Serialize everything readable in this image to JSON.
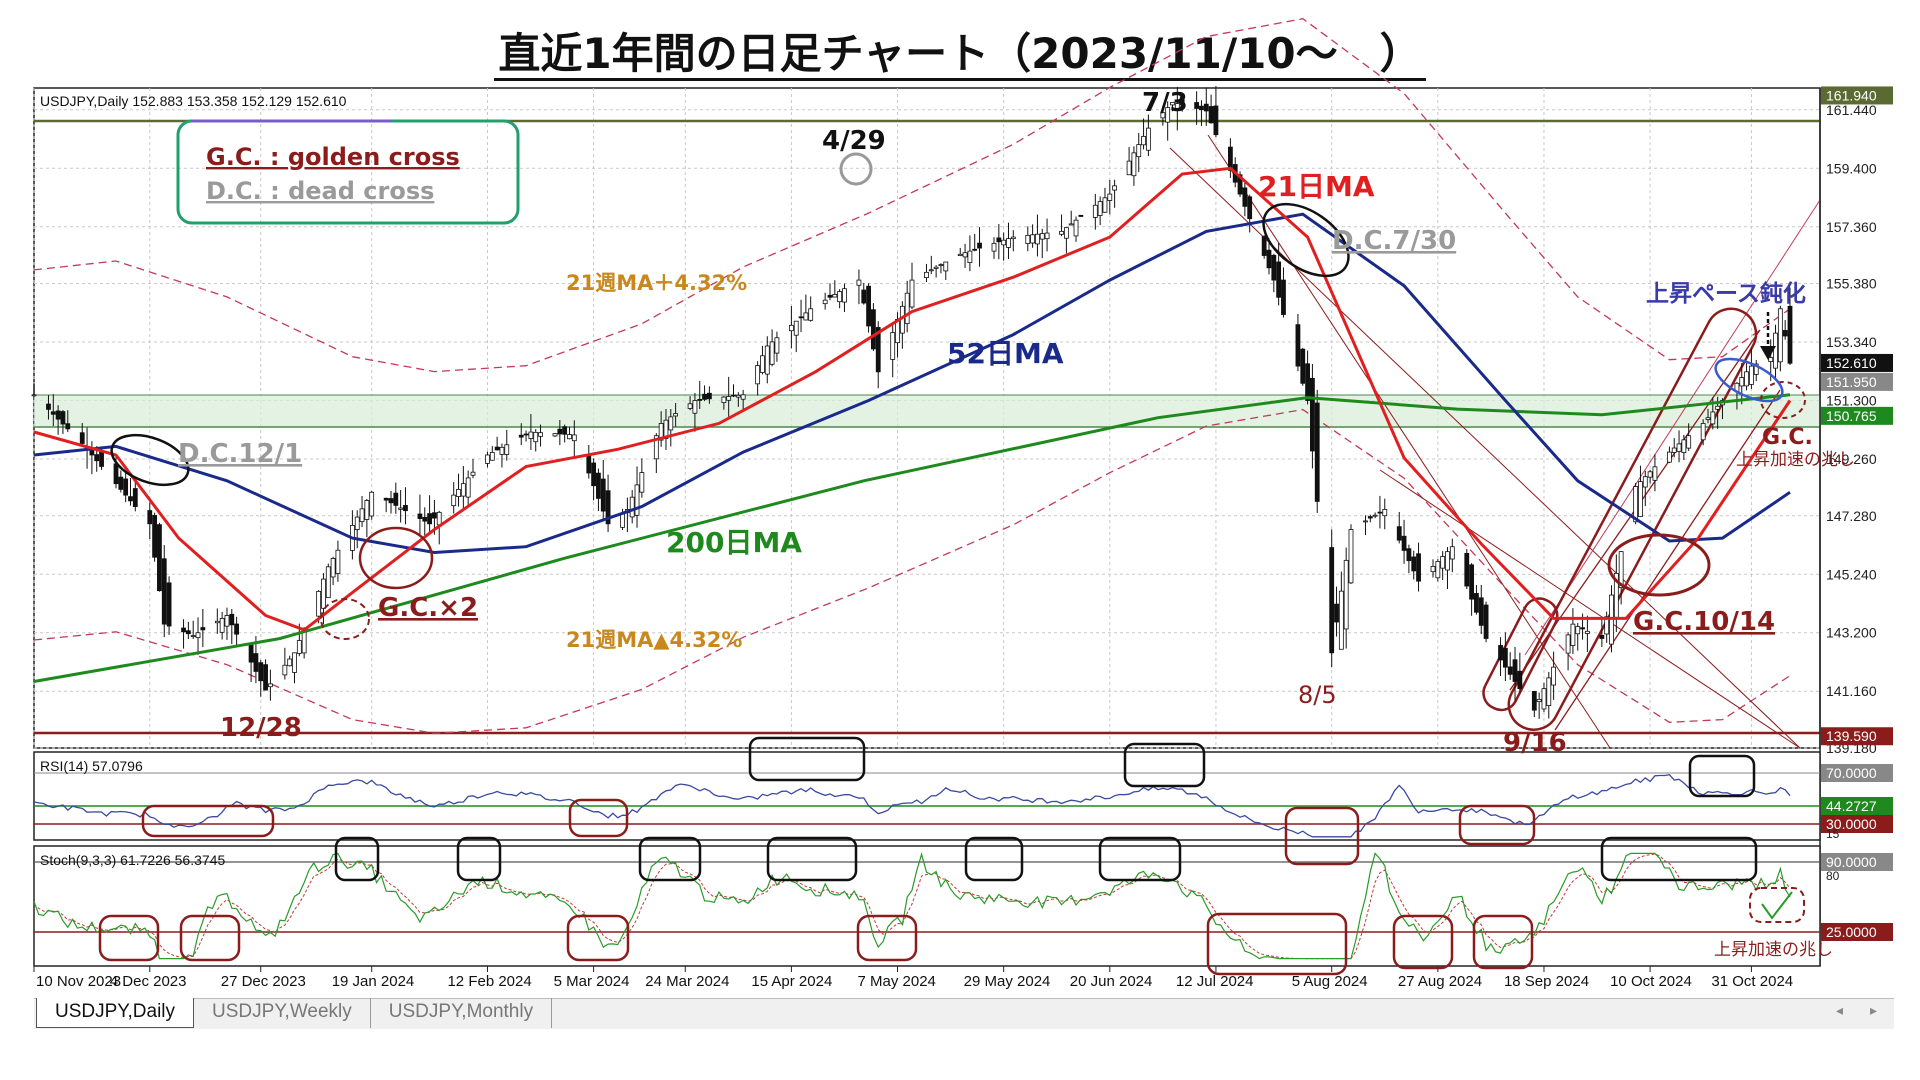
{
  "title": "直近1年間の日足チャート（2023/11/10～　）",
  "main": {
    "symbol_info": "USDJPY,Daily  152.883 153.358 152.129 152.610",
    "legend_gc": "G.C.  : golden cross",
    "legend_dc": "D.C.  :  dead cross",
    "labels": {
      "ma21": "21日MA",
      "ma52": "52日MA",
      "ma200": "200日MA",
      "band_up": "21週MA＋4.32%",
      "band_dn": "21週MA▲4.32%",
      "d_4_29": "4/29",
      "d_7_3": "7/3",
      "d_8_5": "8/5",
      "d_12_28": "12/28",
      "d_9_16": "9/16",
      "dc_12_1": "D.C.12/1",
      "dc_7_30": "D.C.7/30",
      "gc_x2": "G.C.×2",
      "gc_10_14": "G.C.10/14",
      "gc": "G.C.",
      "sign1": "上昇加速の兆し",
      "sign2": "上昇加速の兆し",
      "pace": "上昇ペース鈍化"
    },
    "price_ticks": [
      "161.440",
      "159.400",
      "157.360",
      "155.380",
      "153.340",
      "151.300",
      "149.260",
      "147.280",
      "145.240",
      "143.200",
      "141.160",
      "139.180"
    ],
    "price_tags": {
      "top": "161.940",
      "cur": "152.610",
      "mid": "151.950",
      "low": "150.765",
      "bottom": "139.590"
    },
    "date_labels": [
      "10 Nov 2023",
      "4 Dec 2023",
      "27 Dec 2023",
      "19 Jan 2024",
      "12 Feb 2024",
      "5 Mar 2024",
      "24 Mar 2024",
      "15 Apr 2024",
      "7 May 2024",
      "29 May 2024",
      "20 Jun 2024",
      "12 Jul 2024",
      "5 Aug 2024",
      "27 Aug 2024",
      "18 Sep 2024",
      "10 Oct 2024",
      "31 Oct 2024"
    ]
  },
  "rsi": {
    "label": "RSI(14) 57.0796",
    "tags": [
      "70.0000",
      "44.2727",
      "30.0000"
    ],
    "tick": "15"
  },
  "stoch": {
    "label": "Stoch(9,3,3) 61.7226 56.3745",
    "tags": [
      "90.0000",
      "25.0000"
    ],
    "tick": "80"
  },
  "tabs": [
    "USDJPY,Daily",
    "USDJPY,Weekly",
    "USDJPY,Monthly"
  ],
  "colors": {
    "up_line": "#e02020",
    "ma52": "#1a2a8a",
    "ma200": "#1e8a1e",
    "band": "#c23a5a",
    "annotation": "#8b1c1c",
    "gray_anno": "#8f8f8f",
    "orange": "#c9881e"
  },
  "chart_data": {
    "type": "line",
    "title": "",
    "x_range": [
      "2023-11-10",
      "2024-11-08"
    ],
    "y_range": [
      139.18,
      162.2
    ],
    "series": [
      {
        "name": "USDJPY",
        "points": [
          [
            "2023-11-10",
            151.5
          ],
          [
            "2023-11-20",
            149.8
          ],
          [
            "2023-11-27",
            148.4
          ],
          [
            "2023-12-04",
            147.0
          ],
          [
            "2023-12-07",
            143.5
          ],
          [
            "2023-12-13",
            143.1
          ],
          [
            "2023-12-20",
            143.8
          ],
          [
            "2023-12-28",
            141.2
          ],
          [
            "2024-01-03",
            142.5
          ],
          [
            "2024-01-10",
            145.5
          ],
          [
            "2024-01-19",
            148.1
          ],
          [
            "2024-01-31",
            147.0
          ],
          [
            "2024-02-12",
            149.4
          ],
          [
            "2024-02-21",
            150.2
          ],
          [
            "2024-03-01",
            150.1
          ],
          [
            "2024-03-08",
            147.0
          ],
          [
            "2024-03-12",
            147.5
          ],
          [
            "2024-03-19",
            150.5
          ],
          [
            "2024-03-26",
            151.3
          ],
          [
            "2024-04-05",
            151.5
          ],
          [
            "2024-04-10",
            153.2
          ],
          [
            "2024-04-19",
            154.5
          ],
          [
            "2024-04-29",
            155.5
          ],
          [
            "2024-05-03",
            152.3
          ],
          [
            "2024-05-10",
            155.5
          ],
          [
            "2024-05-20",
            156.4
          ],
          [
            "2024-05-31",
            157.0
          ],
          [
            "2024-06-10",
            157.2
          ],
          [
            "2024-06-20",
            158.5
          ],
          [
            "2024-06-28",
            160.8
          ],
          [
            "2024-07-03",
            161.7
          ],
          [
            "2024-07-10",
            161.4
          ],
          [
            "2024-07-17",
            158.5
          ],
          [
            "2024-07-24",
            155.5
          ],
          [
            "2024-07-31",
            151.3
          ],
          [
            "2024-08-05",
            142.5
          ],
          [
            "2024-08-09",
            146.8
          ],
          [
            "2024-08-16",
            147.5
          ],
          [
            "2024-08-23",
            145.0
          ],
          [
            "2024-08-30",
            146.2
          ],
          [
            "2024-09-06",
            143.0
          ],
          [
            "2024-09-16",
            140.5
          ],
          [
            "2024-09-24",
            143.5
          ],
          [
            "2024-09-30",
            143.0
          ],
          [
            "2024-10-07",
            148.3
          ],
          [
            "2024-10-14",
            149.5
          ],
          [
            "2024-10-21",
            150.5
          ],
          [
            "2024-10-31",
            152.5
          ],
          [
            "2024-11-04",
            152.8
          ],
          [
            "2024-11-06",
            154.5
          ],
          [
            "2024-11-08",
            152.6
          ]
        ]
      },
      {
        "name": "21日MA",
        "points": [
          [
            "2023-11-10",
            150.2
          ],
          [
            "2023-11-27",
            149.4
          ],
          [
            "2023-12-10",
            146.5
          ],
          [
            "2023-12-28",
            143.8
          ],
          [
            "2024-01-05",
            143.3
          ],
          [
            "2024-01-15",
            144.6
          ],
          [
            "2024-02-01",
            146.8
          ],
          [
            "2024-02-20",
            149.0
          ],
          [
            "2024-03-10",
            149.6
          ],
          [
            "2024-03-31",
            150.5
          ],
          [
            "2024-04-20",
            152.3
          ],
          [
            "2024-05-10",
            154.4
          ],
          [
            "2024-05-31",
            155.6
          ],
          [
            "2024-06-20",
            157.0
          ],
          [
            "2024-07-05",
            159.2
          ],
          [
            "2024-07-15",
            159.4
          ],
          [
            "2024-07-31",
            157.0
          ],
          [
            "2024-08-20",
            149.3
          ],
          [
            "2024-09-05",
            146.3
          ],
          [
            "2024-09-20",
            143.7
          ],
          [
            "2024-10-05",
            143.7
          ],
          [
            "2024-10-20",
            146.5
          ],
          [
            "2024-11-08",
            151.3
          ]
        ]
      },
      {
        "name": "52日MA",
        "points": [
          [
            "2023-11-10",
            149.4
          ],
          [
            "2023-11-27",
            149.7
          ],
          [
            "2023-12-20",
            148.5
          ],
          [
            "2024-01-15",
            146.5
          ],
          [
            "2024-02-01",
            146.0
          ],
          [
            "2024-02-20",
            146.2
          ],
          [
            "2024-03-15",
            147.6
          ],
          [
            "2024-04-05",
            149.5
          ],
          [
            "2024-05-01",
            151.3
          ],
          [
            "2024-05-31",
            153.6
          ],
          [
            "2024-06-20",
            155.5
          ],
          [
            "2024-07-10",
            157.2
          ],
          [
            "2024-07-30",
            157.8
          ],
          [
            "2024-08-20",
            155.3
          ],
          [
            "2024-09-10",
            151.3
          ],
          [
            "2024-09-25",
            148.5
          ],
          [
            "2024-10-14",
            146.4
          ],
          [
            "2024-10-25",
            146.5
          ],
          [
            "2024-11-08",
            148.1
          ]
        ]
      },
      {
        "name": "200日MA",
        "points": [
          [
            "2023-11-10",
            141.5
          ],
          [
            "2023-12-31",
            143.0
          ],
          [
            "2024-02-28",
            145.8
          ],
          [
            "2024-04-30",
            148.5
          ],
          [
            "2024-06-30",
            150.7
          ],
          [
            "2024-07-31",
            151.4
          ],
          [
            "2024-08-31",
            151.0
          ],
          [
            "2024-09-30",
            150.8
          ],
          [
            "2024-11-08",
            151.5
          ]
        ]
      }
    ],
    "rsi_range": [
      15,
      90
    ],
    "stoch_range": [
      0,
      100
    ]
  }
}
